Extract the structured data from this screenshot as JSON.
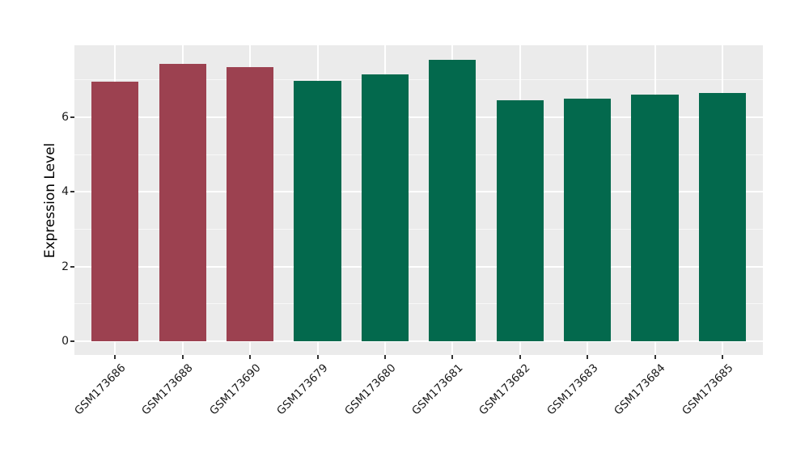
{
  "chart_data": {
    "type": "bar",
    "title": "",
    "xlabel": "",
    "ylabel": "Expression Level",
    "categories": [
      "GSM173686",
      "GSM173688",
      "GSM173690",
      "GSM173679",
      "GSM173680",
      "GSM173681",
      "GSM173682",
      "GSM173683",
      "GSM173684",
      "GSM173685"
    ],
    "values": [
      6.96,
      7.43,
      7.34,
      6.98,
      7.15,
      7.54,
      6.46,
      6.5,
      6.61,
      6.65
    ],
    "bar_colors": [
      "#9C4150",
      "#9C4150",
      "#9C4150",
      "#03694D",
      "#03694D",
      "#03694D",
      "#03694D",
      "#03694D",
      "#03694D",
      "#03694D"
    ],
    "ylim": [
      0,
      7.92
    ],
    "yticks_major": [
      0,
      2,
      4,
      6
    ],
    "yticks_minor": [
      1,
      3,
      5,
      7
    ],
    "bar_width_fraction": 0.7,
    "grid": "white major and minor horizontal lines plus vertical lines at category centers, on gray panel",
    "legend": "none",
    "x_tick_label_rotation_deg": 45
  },
  "style": {
    "panel_background": "#EBEBEB",
    "outer_background": "#FFFFFF",
    "major_grid_color": "#FFFFFF",
    "minor_grid_color": "rgba(255,255,255,0.65)",
    "tick_color": "#333333",
    "text_color": "#1A1A1A",
    "maroon_bar_color": "#9C4150",
    "green_bar_color": "#03694D"
  }
}
